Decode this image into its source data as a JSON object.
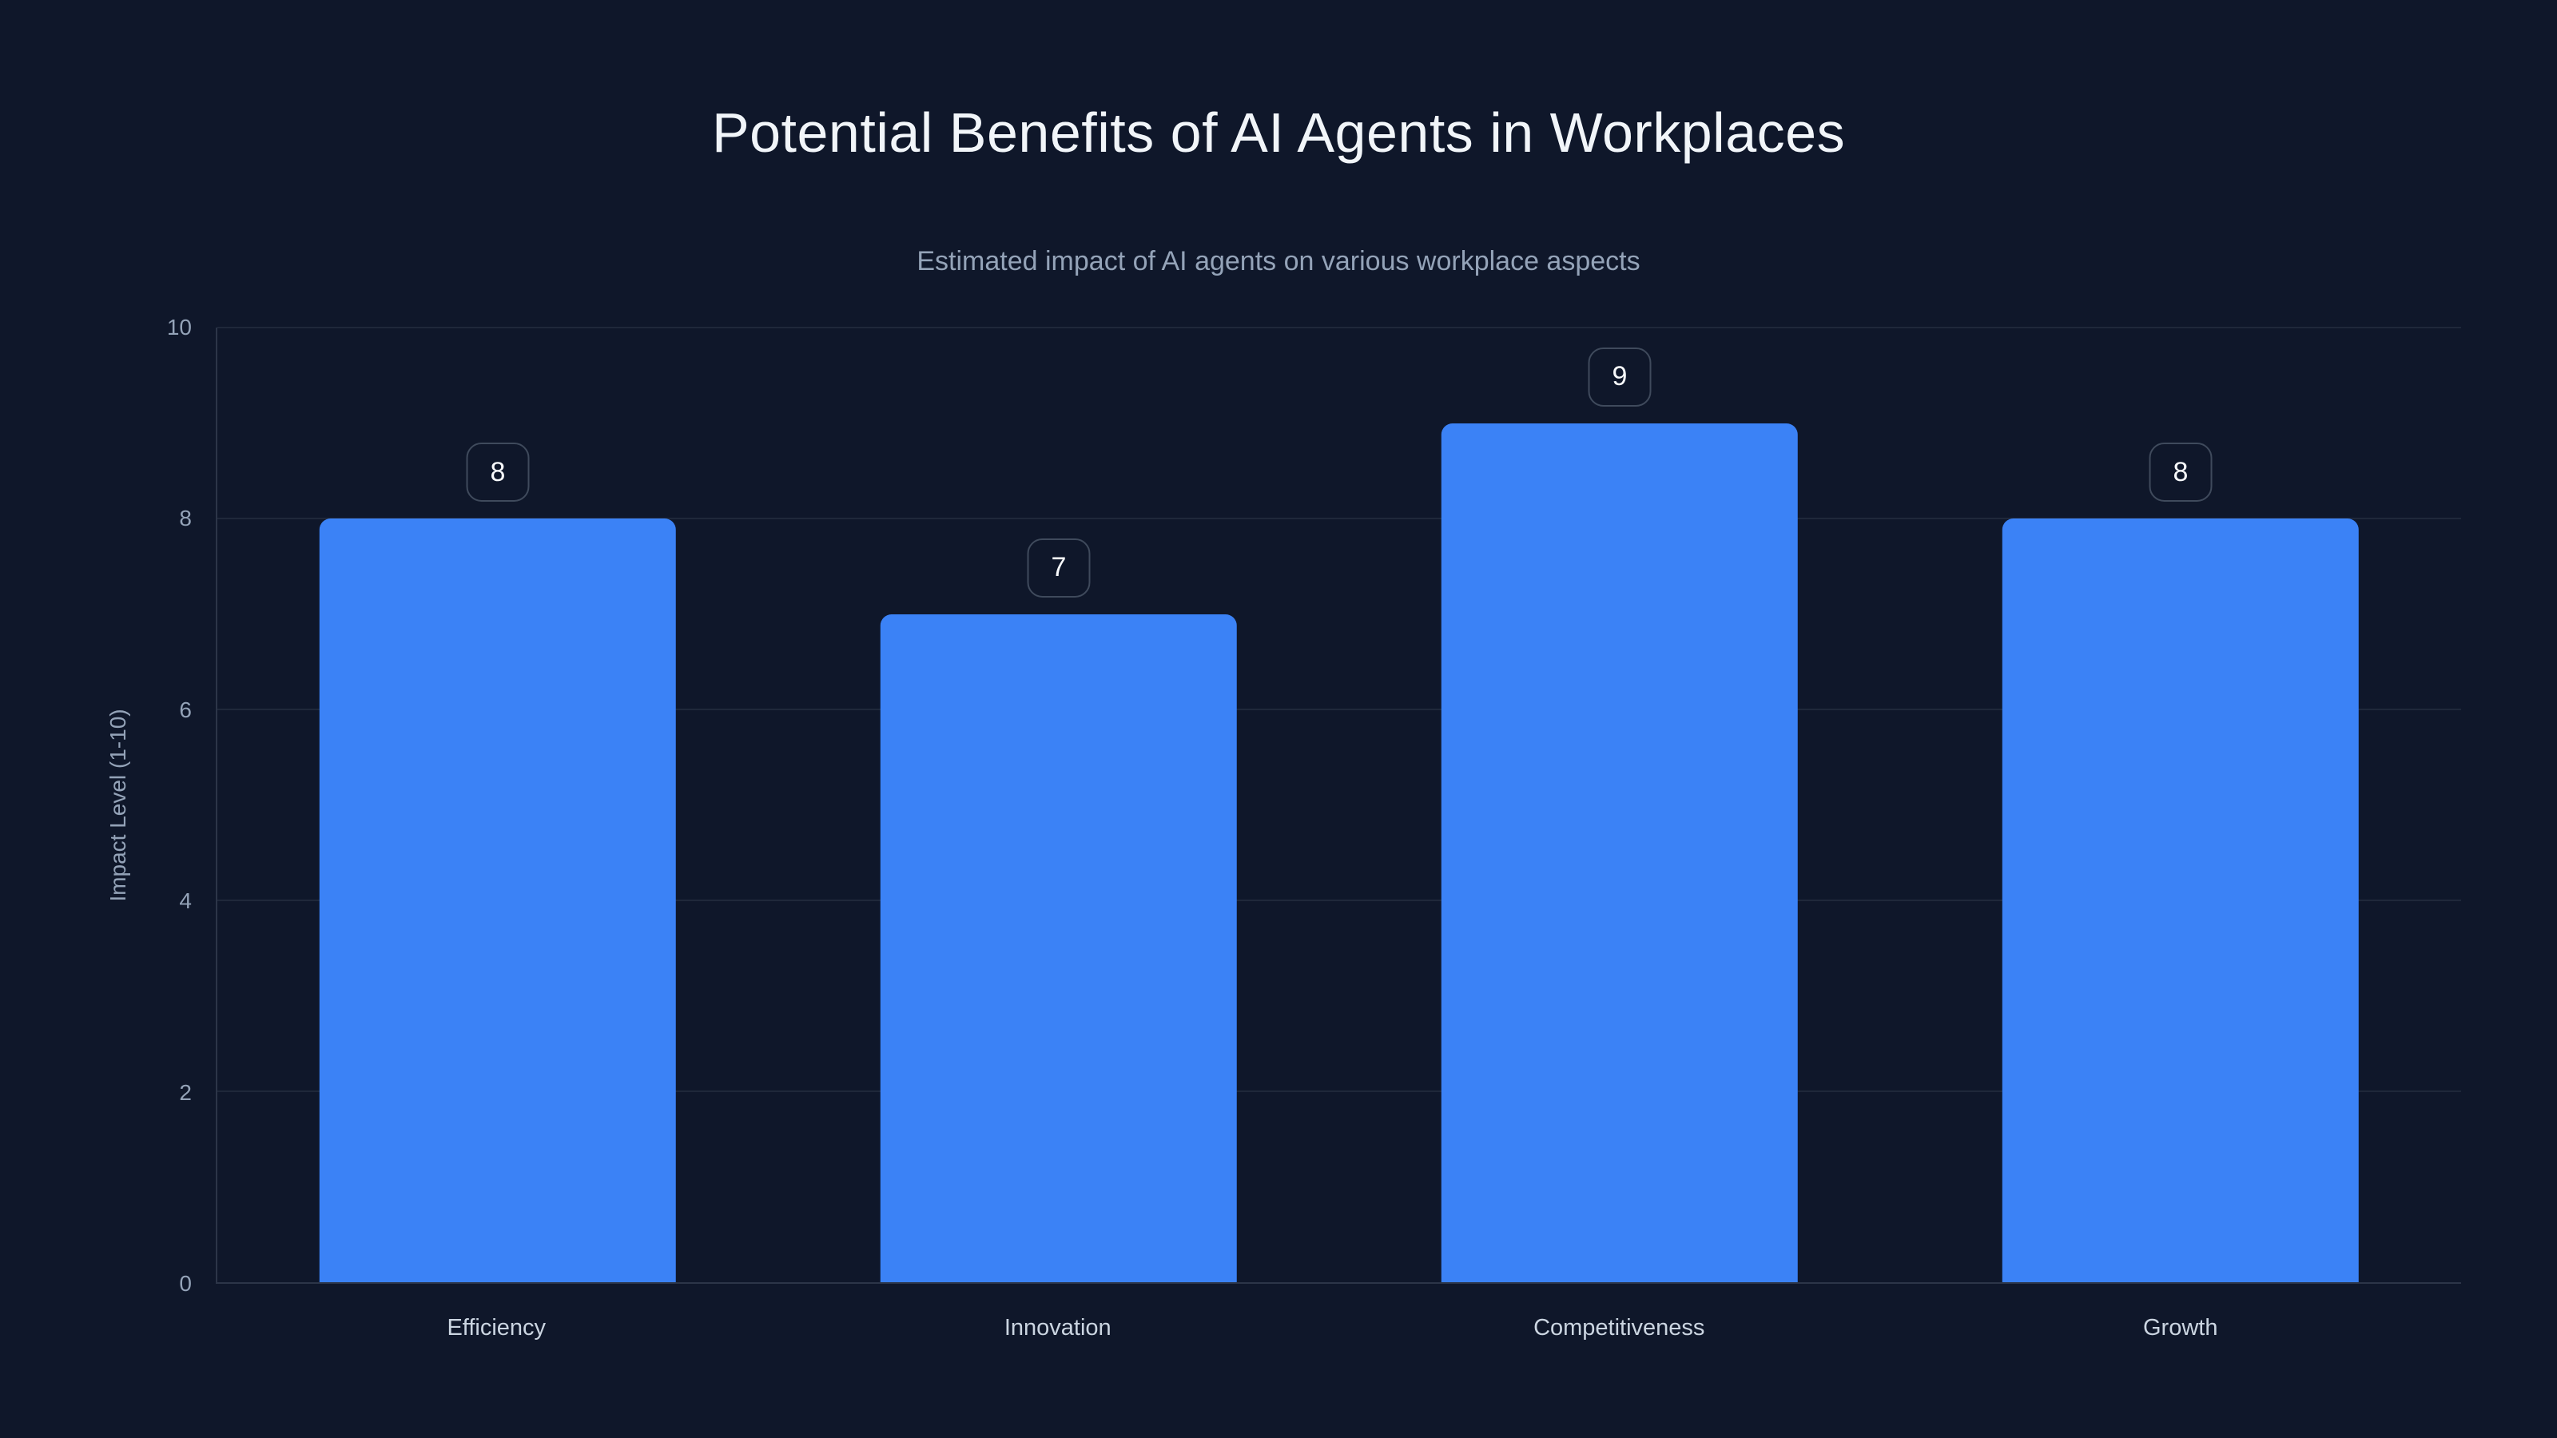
{
  "header": {
    "title": "Potential Benefits of AI Agents in Workplaces",
    "subtitle": "Estimated impact of AI agents on various workplace aspects"
  },
  "chart_data": {
    "type": "bar",
    "title": "Potential Benefits of AI Agents in Workplaces",
    "subtitle": "Estimated impact of AI agents on various workplace aspects",
    "categories": [
      "Efficiency",
      "Innovation",
      "Competitiveness",
      "Growth"
    ],
    "values": [
      8,
      7,
      9,
      8
    ],
    "xlabel": "",
    "ylabel": "Impact Level (1-10)",
    "ylim": [
      0,
      10
    ],
    "yticks": [
      0,
      2,
      4,
      6,
      8,
      10
    ],
    "grid": true,
    "legend": false,
    "value_labels_shown": true
  },
  "theme": {
    "bg": "#0f172a",
    "title_color": "#f1f5f9",
    "subtitle_color": "#94a3b8",
    "tick_color": "#94a3b8",
    "label_color": "#cbd5e1",
    "bar_color": "#3b82f6",
    "gridline_color": "rgba(148,163,184,0.12)",
    "axis_line_color": "rgba(148,163,184,0.22)",
    "badge_border_color": "#3f4a5c",
    "badge_text_color": "#f8fafc"
  }
}
